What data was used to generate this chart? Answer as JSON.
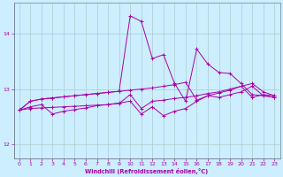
{
  "xlabel": "Windchill (Refroidissement éolien,°C)",
  "background_color": "#cceeff",
  "grid_color": "#aacccc",
  "line_color": "#aa00aa",
  "xlim": [
    -0.5,
    23.5
  ],
  "ylim": [
    11.75,
    14.55
  ],
  "yticks": [
    12,
    13,
    14
  ],
  "xticks": [
    0,
    1,
    2,
    3,
    4,
    5,
    6,
    7,
    8,
    9,
    10,
    11,
    12,
    13,
    14,
    15,
    16,
    17,
    18,
    19,
    20,
    21,
    22,
    23
  ],
  "series1": [
    12.62,
    12.78,
    12.82,
    12.84,
    12.86,
    12.88,
    12.9,
    12.92,
    12.94,
    12.96,
    14.32,
    14.22,
    13.55,
    13.62,
    13.1,
    12.78,
    13.72,
    13.45,
    13.3,
    13.28,
    13.1,
    12.9,
    12.88,
    12.85
  ],
  "series2": [
    12.62,
    12.78,
    12.82,
    12.84,
    12.86,
    12.88,
    12.9,
    12.92,
    12.94,
    12.96,
    12.98,
    13.0,
    13.02,
    13.05,
    13.08,
    13.12,
    12.8,
    12.88,
    12.93,
    12.98,
    13.05,
    13.1,
    12.95,
    12.88
  ],
  "series3": [
    12.62,
    12.65,
    12.66,
    12.67,
    12.68,
    12.69,
    12.7,
    12.71,
    12.72,
    12.74,
    12.9,
    12.65,
    12.78,
    12.8,
    12.83,
    12.85,
    12.88,
    12.92,
    12.95,
    13.0,
    13.05,
    12.85,
    12.9,
    12.88
  ],
  "series4": [
    12.62,
    12.68,
    12.72,
    12.55,
    12.6,
    12.63,
    12.66,
    12.7,
    12.72,
    12.75,
    12.78,
    12.55,
    12.68,
    12.52,
    12.6,
    12.65,
    12.78,
    12.88,
    12.85,
    12.9,
    12.95,
    13.05,
    12.88,
    12.85
  ]
}
